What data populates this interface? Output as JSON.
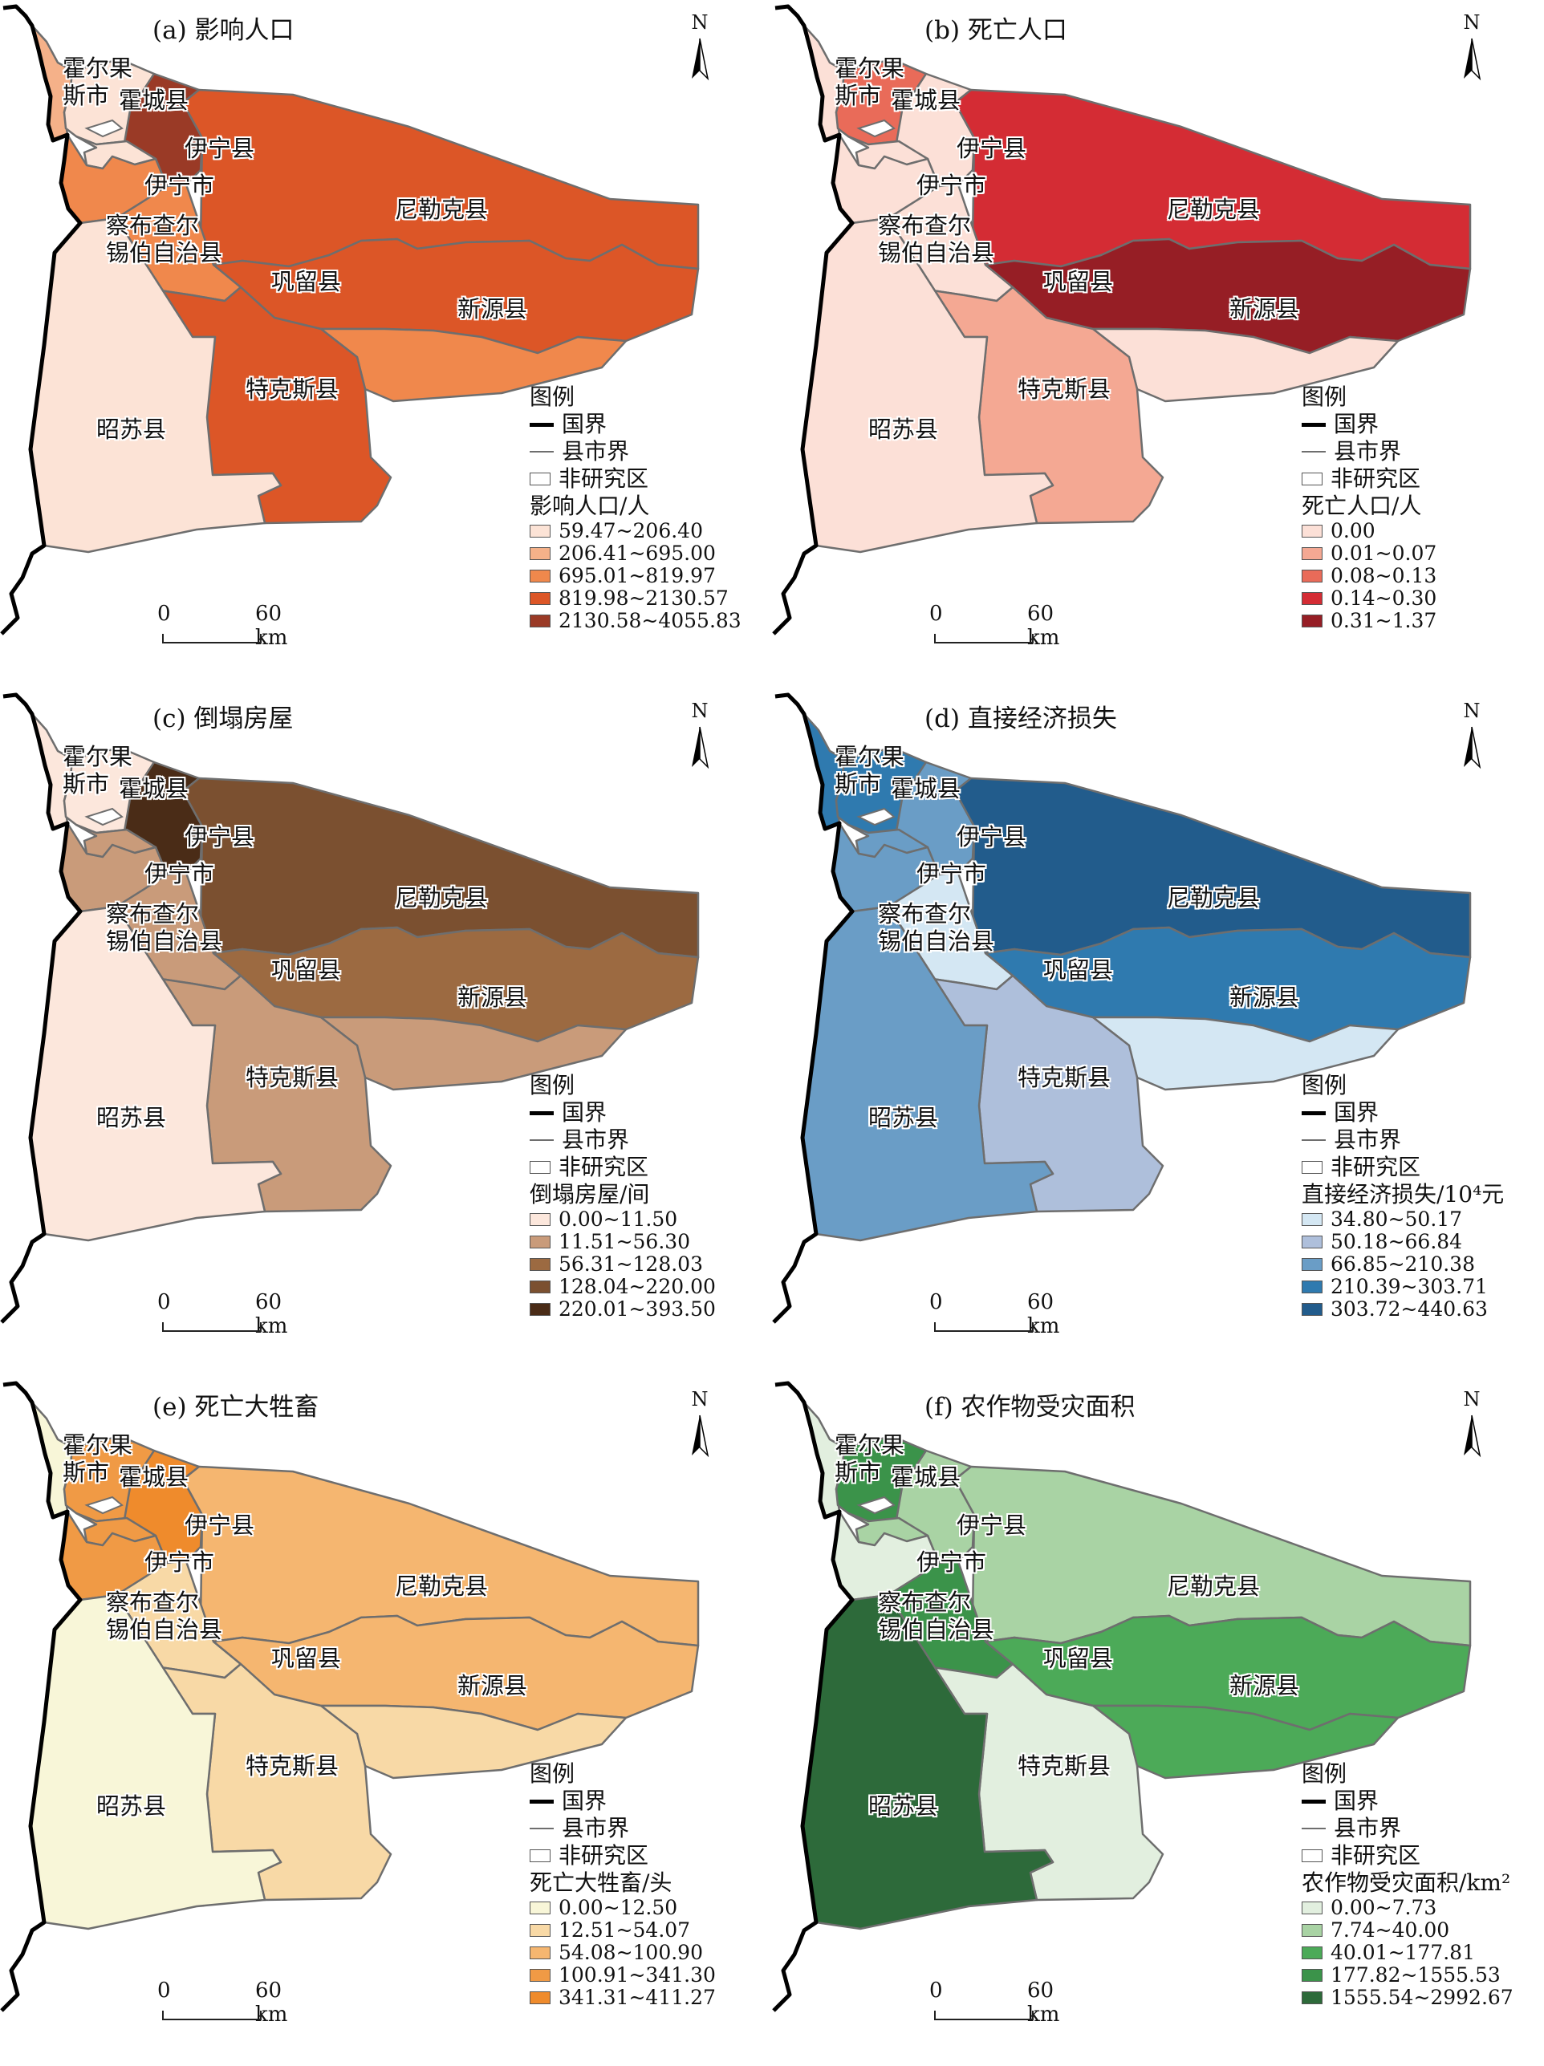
{
  "legend_title": "图例",
  "legend_items": {
    "border": "国界",
    "county": "县市界",
    "nonstudy": "非研究区"
  },
  "scale": {
    "zero": "0",
    "sixty": "60 km"
  },
  "north": "N",
  "regions": {
    "horgos": [
      "霍尔果",
      "斯市"
    ],
    "huocheng": "霍城县",
    "yiningxian": "伊宁县",
    "yiningshi": "伊宁市",
    "nilka": [
      "尼勒克县"
    ],
    "qapqal": [
      "察布查尔",
      "锡伯自治县"
    ],
    "gongliu": "巩留县",
    "xinyuan": "新源县",
    "tekes": "特克斯县",
    "zhaosu": "昭苏县"
  },
  "panels": [
    {
      "title": "(a) 影响人口",
      "unit": "影响人口/人",
      "colors": [
        "#fce3d6",
        "#f5b189",
        "#f0884c",
        "#dc5627",
        "#9a3a26"
      ],
      "bins": [
        "59.47~206.40",
        "206.41~695.00",
        "695.01~819.97",
        "819.98~2130.57",
        "2130.58~4055.83"
      ],
      "class": {
        "horgos": 1,
        "huocheng": 0,
        "yiningxian": 4,
        "yiningshi": 0,
        "nilka": 3,
        "qapqal": 2,
        "gongliu": 2,
        "xinyuan": 3,
        "tekes": 3,
        "zhaosu": 0,
        "east": 2
      }
    },
    {
      "title": "(b) 死亡人口",
      "unit": "死亡人口/人",
      "colors": [
        "#fce0d7",
        "#f4a893",
        "#e96b59",
        "#d42c34",
        "#961e25"
      ],
      "bins": [
        "0.00",
        "0.01~0.07",
        "0.08~0.13",
        "0.14~0.30",
        "0.31~1.37"
      ],
      "class": {
        "horgos": 0,
        "huocheng": 2,
        "yiningxian": 0,
        "yiningshi": 0,
        "nilka": 3,
        "qapqal": 0,
        "gongliu": 0,
        "xinyuan": 4,
        "tekes": 1,
        "zhaosu": 0,
        "east": 0
      }
    },
    {
      "title": "(c) 倒塌房屋",
      "unit": "倒塌房屋/间",
      "colors": [
        "#fce7dc",
        "#c99b7a",
        "#9c6a41",
        "#7b5030",
        "#4a2c17"
      ],
      "bins": [
        "0.00~11.50",
        "11.51~56.30",
        "56.31~128.03",
        "128.04~220.00",
        "220.01~393.50"
      ],
      "class": {
        "horgos": 0,
        "huocheng": 0,
        "yiningxian": 4,
        "yiningshi": 1,
        "nilka": 3,
        "qapqal": 1,
        "gongliu": 1,
        "xinyuan": 2,
        "tekes": 1,
        "zhaosu": 0,
        "east": 1
      }
    },
    {
      "title": "(d) 直接经济损失",
      "unit": "直接经济损失/10⁴元",
      "colors": [
        "#d4e7f3",
        "#aebfdb",
        "#6a9dc6",
        "#2f7aaf",
        "#225c8c"
      ],
      "bins": [
        "34.80~50.17",
        "50.18~66.84",
        "66.85~210.38",
        "210.39~303.71",
        "303.72~440.63"
      ],
      "class": {
        "horgos": 3,
        "huocheng": 3,
        "yiningxian": 2,
        "yiningshi": 2,
        "nilka": 4,
        "qapqal": 2,
        "gongliu": 0,
        "xinyuan": 3,
        "tekes": 1,
        "zhaosu": 2,
        "east": 0
      }
    },
    {
      "title": "(e) 死亡大牲畜",
      "unit": "死亡大牲畜/头",
      "colors": [
        "#f8f6d8",
        "#f8d9a6",
        "#f5b670",
        "#f09a45",
        "#ef8b2c"
      ],
      "bins": [
        "0.00~12.50",
        "12.51~54.07",
        "54.08~100.90",
        "100.91~341.30",
        "341.31~411.27"
      ],
      "class": {
        "horgos": 0,
        "huocheng": 3,
        "yiningxian": 4,
        "yiningshi": 3,
        "nilka": 2,
        "qapqal": 3,
        "gongliu": 1,
        "xinyuan": 2,
        "tekes": 1,
        "zhaosu": 0,
        "east": 1
      }
    },
    {
      "title": "(f) 农作物受灾面积",
      "unit": "农作物受灾面积/km²",
      "colors": [
        "#e2efdf",
        "#a9d3a4",
        "#4caa58",
        "#3b934a",
        "#2d6a3a"
      ],
      "bins": [
        "0.00~7.73",
        "7.74~40.00",
        "40.01~177.81",
        "177.82~1555.53",
        "1555.54~2992.67"
      ],
      "class": {
        "horgos": 0,
        "huocheng": 3,
        "yiningxian": 1,
        "yiningshi": 1,
        "nilka": 1,
        "qapqal": 0,
        "gongliu": 3,
        "xinyuan": 2,
        "tekes": 0,
        "zhaosu": 4,
        "east": 2
      }
    }
  ]
}
